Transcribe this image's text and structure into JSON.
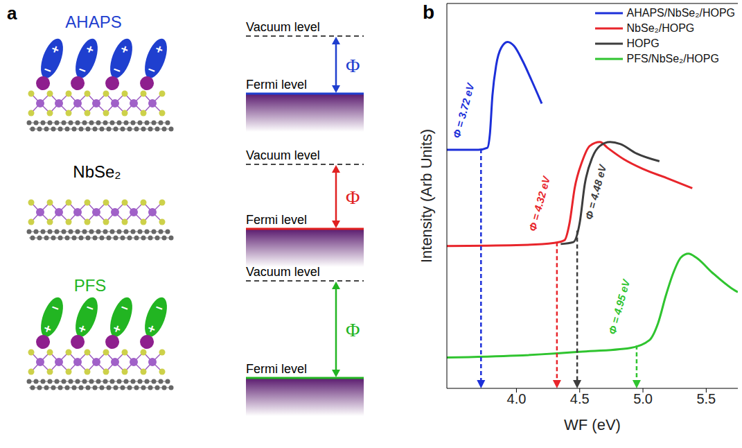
{
  "panel_a": {
    "letter": "a",
    "vacuum_label": "Vacuum level",
    "fermi_label": "Fermi level",
    "phi_symbol": "Φ",
    "rows": [
      {
        "label": "AHAPS",
        "label_color": "#1f3fcf",
        "color": "#1f3fcf",
        "charges": [
          "+",
          "−"
        ]
      },
      {
        "label": "NbSe₂",
        "label_color": "#000000",
        "color": "#e02020"
      },
      {
        "label": "PFS",
        "label_color": "#22b522",
        "color": "#22b522",
        "charges": [
          "−",
          "+"
        ]
      }
    ]
  },
  "panel_b": {
    "letter": "b"
  },
  "chart_data": {
    "type": "line",
    "x_label": "WF (eV)",
    "y_label": "Intensity (Arb Units)",
    "xlim": [
      3.45,
      5.75
    ],
    "xticks": [
      {
        "value": 4,
        "label": "4.0"
      },
      4.5,
      {
        "value": 5,
        "label": "5.0"
      },
      5.5
    ],
    "ylim": [
      0,
      10
    ],
    "tick_labels": "x",
    "grid": false,
    "legend": "upper right",
    "series": [
      {
        "name": "AHAPS/NbSe₂/HOPG",
        "color": "#1c2fd9",
        "x": [
          3.45,
          3.7,
          3.77,
          3.79,
          3.81,
          3.84,
          3.88,
          3.93,
          3.98,
          4.05,
          4.12,
          4.2
        ],
        "values": [
          6.2,
          6.2,
          6.25,
          6.6,
          7.6,
          8.4,
          8.85,
          9.0,
          8.9,
          8.5,
          8.0,
          7.4
        ]
      },
      {
        "name": "NbSe₂/HOPG",
        "color": "#e8252b",
        "x": [
          3.45,
          4.0,
          4.3,
          4.38,
          4.42,
          4.46,
          4.52,
          4.58,
          4.66,
          4.72,
          4.85,
          5.0,
          5.2,
          5.39
        ],
        "values": [
          3.7,
          3.72,
          3.78,
          3.85,
          4.3,
          5.2,
          5.9,
          6.3,
          6.4,
          6.25,
          5.95,
          5.7,
          5.45,
          5.2
        ]
      },
      {
        "name": "HOPG",
        "color": "#3d3d3d",
        "x": [
          4.35,
          4.45,
          4.5,
          4.54,
          4.6,
          4.66,
          4.74,
          4.82,
          4.95,
          5.13
        ],
        "values": [
          3.75,
          3.8,
          4.3,
          5.3,
          6.0,
          6.3,
          6.4,
          6.35,
          6.1,
          5.9
        ]
      },
      {
        "name": "PFS/NbSe₂/HOPG",
        "color": "#2fc42f",
        "x": [
          3.45,
          4.0,
          4.5,
          4.9,
          5.05,
          5.12,
          5.18,
          5.24,
          5.3,
          5.36,
          5.42,
          5.55,
          5.7,
          5.75
        ],
        "values": [
          0.8,
          0.85,
          0.95,
          1.05,
          1.25,
          1.7,
          2.4,
          3.0,
          3.4,
          3.5,
          3.4,
          3.0,
          2.6,
          2.5
        ]
      }
    ],
    "annotations": [
      {
        "text": "Φ = 3.72 eV",
        "x": 3.72,
        "series": "AHAPS/NbSe₂/HOPG"
      },
      {
        "text": "Φ = 4.32 eV",
        "x": 4.32,
        "series": "NbSe₂/HOPG"
      },
      {
        "text": "Φ = 4.48 eV",
        "x": 4.48,
        "series": "HOPG"
      },
      {
        "text": "Φ = 4.95 eV",
        "x": 4.95,
        "series": "PFS/NbSe₂/HOPG"
      }
    ]
  }
}
